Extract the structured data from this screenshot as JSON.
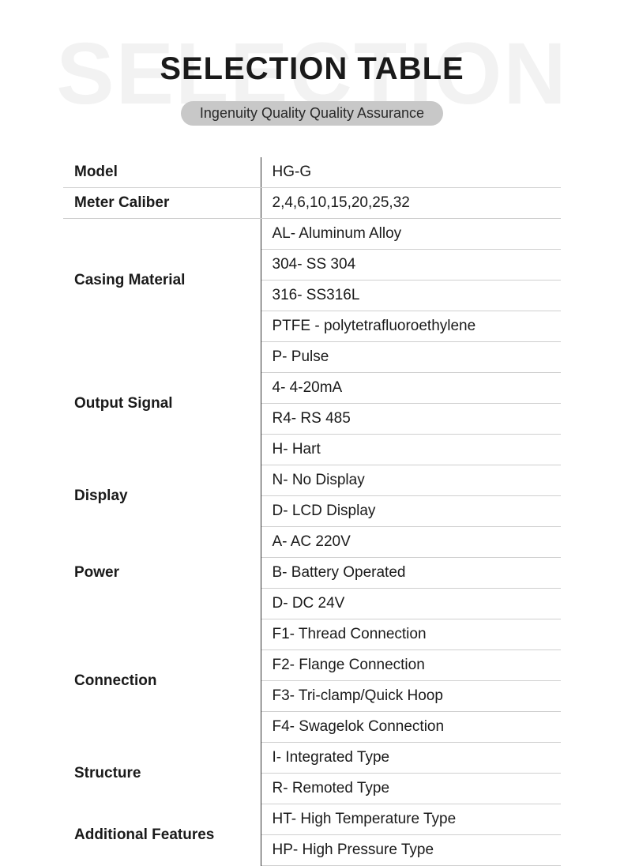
{
  "background_text": "SELECTION",
  "title": "SELECTION TABLE",
  "subtitle": "Ingenuity Quality Quality Assurance",
  "colors": {
    "page_bg": "#ffffff",
    "bg_text": "#f2f2f2",
    "title": "#1a1a1a",
    "pill_bg": "#c8c8c8",
    "pill_text": "#2a2a2a",
    "cell_text": "#1a1a1a",
    "col_divider": "#333333",
    "row_divider": "#cfcfcf"
  },
  "table": {
    "rows": [
      {
        "label": "Model",
        "values": [
          "HG-G"
        ]
      },
      {
        "label": "Meter Caliber",
        "values": [
          "2,4,6,10,15,20,25,32"
        ]
      },
      {
        "label": "Casing Material",
        "values": [
          "AL- Aluminum Alloy",
          "304- SS 304",
          "316- SS316L",
          "PTFE - polytetrafluoroethylene"
        ]
      },
      {
        "label": "Output Signal",
        "values": [
          "P- Pulse",
          "4- 4-20mA",
          "R4- RS 485",
          "H- Hart"
        ]
      },
      {
        "label": "Display",
        "values": [
          "N- No Display",
          "D- LCD Display"
        ]
      },
      {
        "label": "Power",
        "values": [
          "A- AC 220V",
          "B- Battery Operated",
          "D- DC 24V"
        ]
      },
      {
        "label": "Connection",
        "values": [
          "F1- Thread Connection",
          "F2- Flange Connection",
          "F3- Tri-clamp/Quick Hoop",
          "F4- Swagelok Connection"
        ]
      },
      {
        "label": "Structure",
        "values": [
          "I- Integrated Type",
          "R- Remoted Type"
        ]
      },
      {
        "label": "Additional Features",
        "values": [
          "HT- High Temperature Type",
          "HP- High Pressure Type"
        ]
      }
    ]
  }
}
